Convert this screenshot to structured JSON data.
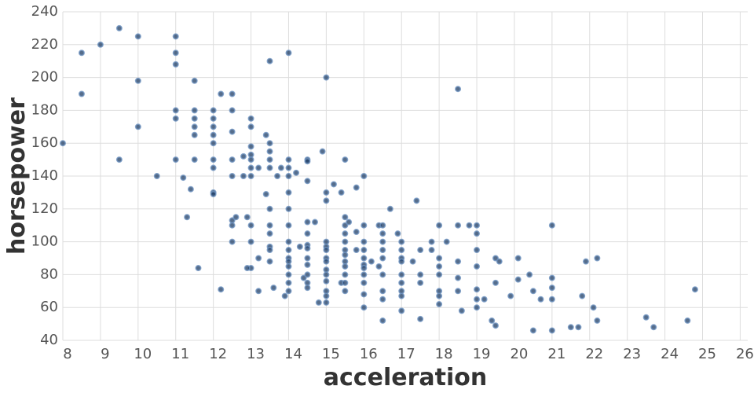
{
  "chart_data": {
    "type": "scatter",
    "x_label": "acceleration",
    "y_label": "horsepower",
    "color": "#1e3c64",
    "stroke": "#6f93c0",
    "grid": true,
    "xlim": [
      8,
      26.2
    ],
    "ylim": [
      40,
      240
    ],
    "xticks": [
      8,
      9,
      10,
      11,
      12,
      13,
      14,
      15,
      16,
      17,
      18,
      19,
      20,
      21,
      22,
      23,
      24,
      25,
      26
    ],
    "yticks": [
      40,
      60,
      80,
      100,
      120,
      140,
      160,
      180,
      200,
      220,
      240
    ],
    "x": [
      8,
      8.5,
      8.5,
      9,
      9.5,
      9.5,
      10,
      10,
      10,
      10.5,
      11,
      11,
      11,
      11,
      11,
      11,
      11.2,
      11.3,
      11.5,
      11.5,
      11.5,
      11.5,
      11.5,
      11.5,
      11.4,
      11.6,
      12,
      12,
      12,
      12,
      12,
      12,
      12,
      12,
      12,
      12.2,
      12.2,
      12.5,
      12.5,
      12.5,
      12.5,
      12.5,
      12.5,
      12.5,
      12.5,
      12.6,
      12.8,
      12.8,
      12.9,
      13,
      13,
      13,
      13,
      13,
      13,
      13,
      13,
      13,
      13,
      12.9,
      13.2,
      13.2,
      13.2,
      13.4,
      13.4,
      13.5,
      13.5,
      13.5,
      13.5,
      13.5,
      13.5,
      13.5,
      13.5,
      13.5,
      13.5,
      13.5,
      13.6,
      13.7,
      13.8,
      13.9,
      14,
      14,
      14,
      14,
      14,
      14,
      14,
      14,
      14,
      14,
      14,
      14,
      14,
      14,
      14,
      14.2,
      14.3,
      14.4,
      14.5,
      14.5,
      14.5,
      14.5,
      14.5,
      14.5,
      14.5,
      14.5,
      14.5,
      14.5,
      14.5,
      14.5,
      14.7,
      14.8,
      14.9,
      15,
      15,
      15,
      15,
      15,
      15,
      15,
      15,
      15,
      15,
      15,
      15,
      15,
      15,
      15.2,
      15.4,
      15.4,
      15.5,
      15.5,
      15.5,
      15.5,
      15.5,
      15.5,
      15.5,
      15.5,
      15.5,
      15.5,
      15.5,
      15.5,
      15.6,
      15.8,
      15.8,
      15.8,
      16,
      16,
      16,
      16,
      16,
      16,
      16,
      16,
      16,
      16,
      16,
      16.2,
      16.4,
      16.4,
      16.5,
      16.5,
      16.5,
      16.5,
      16.5,
      16.5,
      16.5,
      16.5,
      16.5,
      16.7,
      16.9,
      17,
      17,
      17,
      17,
      17,
      17,
      17,
      17,
      17,
      17.3,
      17.4,
      17.5,
      17.5,
      17.5,
      17.5,
      17.8,
      17.8,
      18,
      18,
      18,
      18,
      18,
      18,
      18,
      18.2,
      18.5,
      18.5,
      18.5,
      18.5,
      18.5,
      18.6,
      18.8,
      19,
      19,
      19,
      19,
      19,
      19,
      19,
      19.2,
      19.4,
      19.5,
      19.5,
      19.5,
      19.6,
      19.9,
      20.1,
      20.1,
      20.4,
      20.5,
      20.5,
      20.7,
      21,
      21,
      21,
      21,
      21,
      21.5,
      21.7,
      21.8,
      21.9,
      22.1,
      22.2,
      22.2,
      23.5,
      23.7,
      24.6,
      24.8
    ],
    "values": [
      160,
      215,
      190,
      220,
      230,
      150,
      225,
      198,
      170,
      140,
      225,
      215,
      208,
      180,
      175,
      150,
      139,
      115,
      198,
      180,
      175,
      170,
      165,
      150,
      132,
      84,
      180,
      175,
      170,
      165,
      160,
      150,
      145,
      130,
      129,
      190,
      71,
      190,
      180,
      167,
      150,
      140,
      113,
      110,
      100,
      115,
      140,
      152,
      115,
      175,
      170,
      158,
      153,
      150,
      145,
      140,
      110,
      100,
      84,
      84,
      145,
      90,
      70,
      165,
      129,
      210,
      160,
      155,
      150,
      145,
      120,
      110,
      105,
      97,
      95,
      88,
      72,
      140,
      145,
      67,
      215,
      150,
      145,
      140,
      130,
      120,
      110,
      100,
      95,
      90,
      88,
      85,
      80,
      75,
      70,
      142,
      97,
      78,
      150,
      149,
      137,
      112,
      105,
      98,
      96,
      90,
      86,
      80,
      75,
      72,
      112,
      63,
      155,
      200,
      130,
      125,
      100,
      97,
      95,
      90,
      88,
      83,
      80,
      76,
      70,
      67,
      63,
      135,
      130,
      75,
      150,
      115,
      110,
      105,
      100,
      95,
      92,
      88,
      85,
      80,
      75,
      70,
      112,
      133,
      106,
      95,
      140,
      110,
      100,
      95,
      90,
      86,
      84,
      80,
      75,
      68,
      60,
      88,
      110,
      85,
      110,
      105,
      100,
      95,
      90,
      80,
      70,
      65,
      52,
      120,
      105,
      100,
      95,
      90,
      88,
      80,
      75,
      70,
      67,
      58,
      88,
      125,
      95,
      80,
      75,
      53,
      95,
      100,
      110,
      90,
      85,
      80,
      70,
      67,
      62,
      100,
      193,
      110,
      88,
      78,
      70,
      58,
      110,
      110,
      105,
      95,
      85,
      71,
      65,
      60,
      65,
      52,
      90,
      75,
      49,
      88,
      67,
      90,
      77,
      80,
      70,
      46,
      65,
      110,
      78,
      72,
      65,
      46,
      48,
      48,
      67,
      88,
      60,
      90,
      52,
      54,
      48,
      52,
      71
    ]
  }
}
